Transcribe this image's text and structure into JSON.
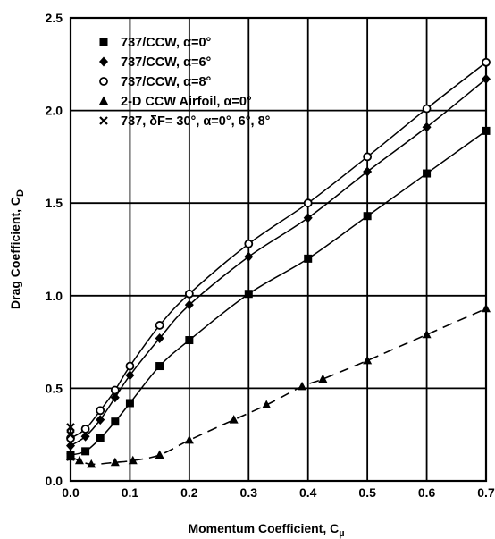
{
  "chart_data": {
    "type": "line",
    "xlabel": "Momentum Coefficient, C",
    "xlabel_sub": "µ",
    "ylabel": "Drag Coefficient, C",
    "ylabel_sub": "D",
    "xlim": [
      0.0,
      0.7
    ],
    "ylim": [
      0.0,
      2.5
    ],
    "x_ticks": [
      "0.0",
      "0.1",
      "0.2",
      "0.3",
      "0.4",
      "0.5",
      "0.6",
      "0.7"
    ],
    "y_ticks": [
      "0.0",
      "0.5",
      "1.0",
      "1.5",
      "2.0",
      "2.5"
    ],
    "grid": true,
    "legend_position": "top-left",
    "series": [
      {
        "name": "737/CCW, α=0°",
        "marker": "filled-square",
        "line": "solid",
        "points": [
          [
            0.0,
            0.14
          ],
          [
            0.025,
            0.16
          ],
          [
            0.05,
            0.23
          ],
          [
            0.075,
            0.32
          ],
          [
            0.1,
            0.42
          ],
          [
            0.15,
            0.62
          ],
          [
            0.2,
            0.76
          ],
          [
            0.3,
            1.01
          ],
          [
            0.4,
            1.2
          ],
          [
            0.5,
            1.43
          ],
          [
            0.6,
            1.66
          ],
          [
            0.7,
            1.89
          ]
        ]
      },
      {
        "name": "737/CCW, α=6°",
        "marker": "filled-diamond",
        "line": "solid",
        "points": [
          [
            0.0,
            0.19
          ],
          [
            0.025,
            0.24
          ],
          [
            0.05,
            0.33
          ],
          [
            0.075,
            0.45
          ],
          [
            0.1,
            0.57
          ],
          [
            0.15,
            0.77
          ],
          [
            0.2,
            0.95
          ],
          [
            0.3,
            1.21
          ],
          [
            0.4,
            1.42
          ],
          [
            0.5,
            1.67
          ],
          [
            0.6,
            1.91
          ],
          [
            0.7,
            2.17
          ]
        ]
      },
      {
        "name": "737/CCW, α=8°",
        "marker": "open-circle",
        "line": "solid",
        "points": [
          [
            0.0,
            0.23
          ],
          [
            0.025,
            0.28
          ],
          [
            0.05,
            0.38
          ],
          [
            0.075,
            0.49
          ],
          [
            0.1,
            0.62
          ],
          [
            0.15,
            0.84
          ],
          [
            0.2,
            1.01
          ],
          [
            0.3,
            1.28
          ],
          [
            0.4,
            1.5
          ],
          [
            0.5,
            1.75
          ],
          [
            0.6,
            2.01
          ],
          [
            0.7,
            2.26
          ]
        ]
      },
      {
        "name": "2-D CCW Airfoil, α=0°",
        "marker": "filled-triangle",
        "line": "dashed",
        "points": [
          [
            0.0,
            0.13
          ],
          [
            0.015,
            0.11
          ],
          [
            0.035,
            0.09
          ],
          [
            0.075,
            0.1
          ],
          [
            0.105,
            0.11
          ],
          [
            0.15,
            0.14
          ],
          [
            0.2,
            0.22
          ],
          [
            0.275,
            0.33
          ],
          [
            0.33,
            0.41
          ],
          [
            0.39,
            0.51
          ],
          [
            0.425,
            0.55
          ],
          [
            0.5,
            0.65
          ],
          [
            0.6,
            0.79
          ],
          [
            0.7,
            0.93
          ]
        ]
      },
      {
        "name": "737, δF= 30°,  α=0°, 6°, 8°",
        "marker": "x",
        "line": "none",
        "points": [
          [
            0.0,
            0.13
          ],
          [
            0.0,
            0.25
          ],
          [
            0.0,
            0.29
          ]
        ]
      }
    ]
  }
}
